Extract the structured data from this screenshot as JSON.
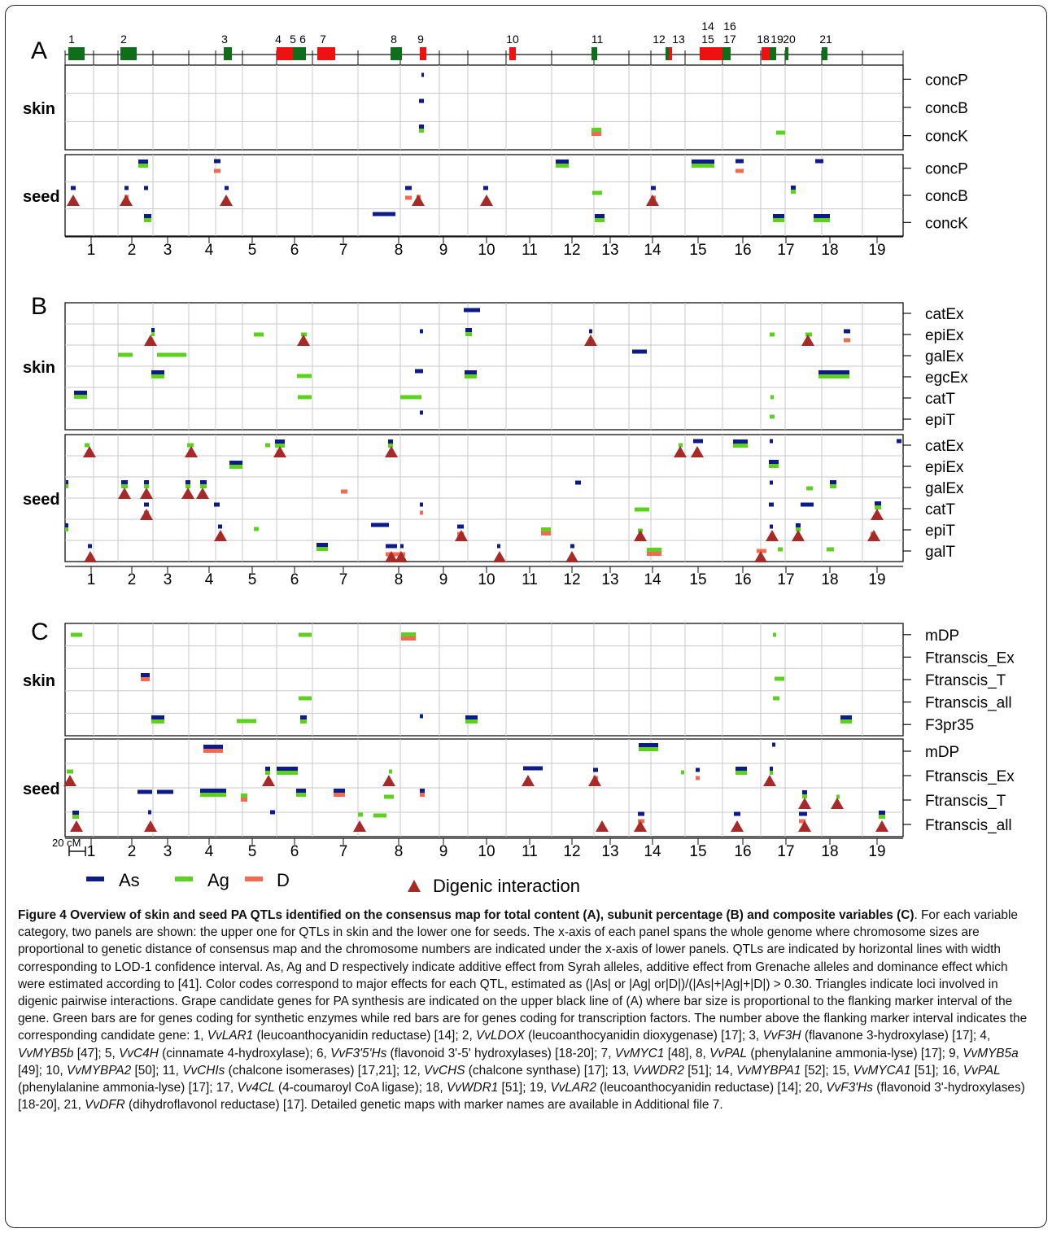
{
  "panels": [
    {
      "letter": "A",
      "x_start": 0,
      "rows": {
        "skin": [
          "concP",
          "concB",
          "concK"
        ],
        "seed": [
          "concP",
          "concB",
          "concK"
        ]
      },
      "show_axis": true
    },
    {
      "letter": "B",
      "rows": {
        "skin": [
          "catEx",
          "epiEx",
          "galEx",
          "egcEx",
          "catT",
          "epiT"
        ],
        "seed": [
          "catEx",
          "epiEx",
          "galEx",
          "catT",
          "epiT",
          "galT"
        ]
      },
      "show_axis": true
    },
    {
      "letter": "C",
      "rows": {
        "skin": [
          "mDP",
          "Ftranscis_Ex",
          "Ftranscis_T",
          "Ftranscis_all",
          "F3pr35"
        ],
        "seed": [
          "mDP",
          "Ftranscis_Ex",
          "Ftranscis_T",
          "Ftranscis_all"
        ]
      },
      "show_axis": true
    }
  ],
  "group_labels": {
    "skin": "skin",
    "seed": "seed"
  },
  "chromosome_numbers": [
    "1",
    "2",
    "3",
    "4",
    "5",
    "6",
    "7",
    "8",
    "9",
    "10",
    "11",
    "12",
    "13",
    "14",
    "15",
    "16",
    "17",
    "18",
    "19"
  ],
  "candidate_genes": [
    {
      "n": "1",
      "type": "synthetic"
    },
    {
      "n": "2",
      "type": "synthetic"
    },
    {
      "n": "3",
      "type": "synthetic"
    },
    {
      "n": "4",
      "type": "transcription"
    },
    {
      "n": "5",
      "type": "synthetic"
    },
    {
      "n": "6",
      "type": "synthetic"
    },
    {
      "n": "7",
      "type": "transcription"
    },
    {
      "n": "8",
      "type": "synthetic"
    },
    {
      "n": "9",
      "type": "transcription"
    },
    {
      "n": "10",
      "type": "transcription"
    },
    {
      "n": "11",
      "type": "synthetic"
    },
    {
      "n": "12",
      "type": "synthetic"
    },
    {
      "n": "13",
      "type": "transcription"
    },
    {
      "n": "14",
      "type": "transcription"
    },
    {
      "n": "15",
      "type": "transcription"
    },
    {
      "n": "16",
      "type": "synthetic"
    },
    {
      "n": "17",
      "type": "synthetic"
    },
    {
      "n": "18",
      "type": "transcription"
    },
    {
      "n": "19",
      "type": "synthetic"
    },
    {
      "n": "20",
      "type": "synthetic"
    },
    {
      "n": "21",
      "type": "synthetic"
    }
  ],
  "scale_label": "20 cM",
  "legend": {
    "as": "As",
    "ag": "Ag",
    "d": "D",
    "digenic": "Digenic interaction"
  },
  "colors": {
    "as": "#0d1a8a",
    "ag": "#5cd21e",
    "d": "#f46a50",
    "digenic": "#a52a28",
    "synthetic": "#0f6e1a",
    "transcription": "#ee1111",
    "grid": "#c8c8c8"
  },
  "caption": {
    "title": "Figure 4 Overview of skin and seed PA QTLs identified on the consensus map for total content (A), subunit percentage (B) and composite variables (C)",
    "body_1": ". For each variable category, two panels are shown: the upper one for QTLs in skin and the lower one for seeds. The x-axis of each panel spans the whole genome where chromosome sizes are proportional to genetic distance of consensus map and the chromosome numbers are indicated under the x-axis of lower panels. QTLs are indicated by horizontal lines with width corresponding to LOD-1 confidence interval. As, Ag and D respectively indicate additive effect from Syrah alleles, additive effect from Grenache alleles and dominance effect which were estimated according to [41]. Color codes correspond to major effects for each QTL, estimated as (|As| or |Ag| or|D|)/(|As|+|Ag|+|D|) > 0.30. Triangles indicate loci involved in digenic pairwise interactions. Grape candidate genes for PA synthesis are indicated on the upper black line of (A) where bar size is proportional to the flanking marker interval of the gene. Green bars are for genes coding for synthetic enzymes while red bars are for genes coding for transcription factors. The number above the flanking marker interval indicates the corresponding candidate gene: 1, ",
    "genes": [
      [
        "VvLAR1",
        " (leucoanthocyanidin reductase) [14]; 2, "
      ],
      [
        "VvLDOX",
        " (leucoanthocyanidin dioxygenase) [17]; 3, "
      ],
      [
        "VvF3H",
        " (flavanone 3-hydroxylase) [17]; 4, "
      ],
      [
        "VvMYB5b",
        " [47]; 5, "
      ],
      [
        "VvC4H",
        " (cinnamate 4-hydroxylase); 6, "
      ],
      [
        "VvF3'5'Hs",
        " (flavonoid 3'-5' hydroxylases) [18-20]; 7, "
      ],
      [
        "VvMYC1",
        " [48], 8, "
      ],
      [
        "VvPAL",
        " (phenylalanine ammonia-lyse) [17]; 9, "
      ],
      [
        "VvMYB5a",
        " [49]; 10, "
      ],
      [
        "VvMYBPA2",
        " [50]; 11, "
      ],
      [
        "VvCHIs",
        " (chalcone isomerases) [17,21]; 12, "
      ],
      [
        "VvCHS",
        " (chalcone synthase) [17]; 13, "
      ],
      [
        "VvWDR2",
        " [51]; 14, "
      ],
      [
        "VvMYBPA1",
        " [52]; 15, "
      ],
      [
        "VvMYCA1",
        " [51]; 16, "
      ],
      [
        "VvPAL",
        " (phenylalanine ammonia-lyse) [17]; 17, "
      ],
      [
        "Vv4CL",
        " (4-coumaroyl CoA ligase); 18, "
      ],
      [
        "VvWDR1",
        " [51]; 19, "
      ],
      [
        "VvLAR2",
        " (leucoanthocyanidin reductase) [14]; 20, "
      ],
      [
        "VvF3'Hs",
        " (flavonoid 3'-hydroxylases) [18-20], 21, "
      ],
      [
        "VvDFR",
        " (dihydroflavonol reductase) [17]. Detailed genetic maps with marker names are available in Additional file 7."
      ]
    ]
  }
}
